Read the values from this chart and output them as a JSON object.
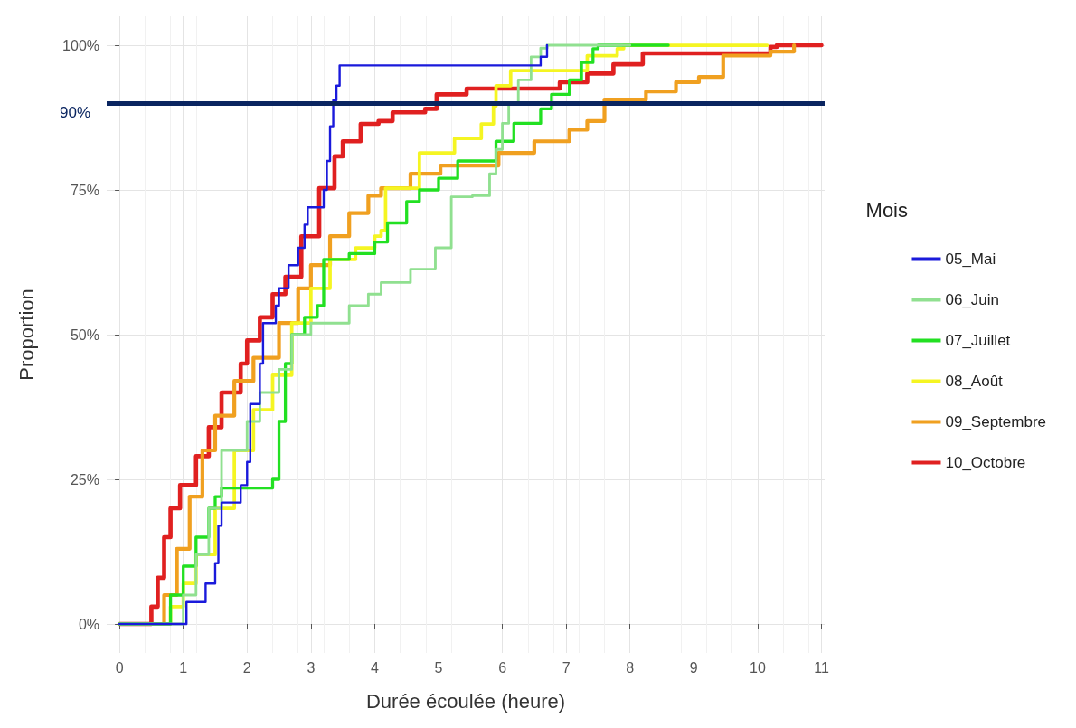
{
  "chart_data": {
    "type": "step",
    "xlabel": "Durée écoulée (heure)",
    "ylabel": "Proportion",
    "legend_title": "Mois",
    "legend": "right",
    "grid": true,
    "line_style": "solid",
    "marker": "none",
    "xlim": [
      -0.2,
      11.05
    ],
    "xticks": [
      0,
      1,
      2,
      3,
      4,
      5,
      6,
      7,
      8,
      9,
      10,
      11
    ],
    "ylim": [
      -5,
      105
    ],
    "yticks": [
      {
        "value": 0,
        "label": "0%"
      },
      {
        "value": 25,
        "label": "25%"
      },
      {
        "value": 50,
        "label": "50%"
      },
      {
        "value": 75,
        "label": "75%"
      },
      {
        "value": 100,
        "label": "100%"
      }
    ],
    "ref_lines": [
      {
        "axis": "y",
        "value": 90,
        "label": "90%",
        "color": "#0a2560",
        "line_style": "solid"
      }
    ],
    "series": [
      {
        "name": "05_Mai",
        "color": "#1a1adb",
        "x": [
          0,
          1.05,
          1.35,
          1.5,
          1.55,
          1.6,
          1.9,
          2.0,
          2.05,
          2.2,
          2.25,
          2.45,
          2.5,
          2.65,
          2.8,
          2.9,
          2.95,
          3.2,
          3.25,
          3.3,
          3.35,
          3.4,
          3.45,
          6.6,
          6.7
        ],
        "values": [
          0,
          3.8,
          7,
          10.5,
          17,
          21,
          24,
          28,
          38,
          45,
          52,
          55,
          58,
          62,
          65,
          69,
          72,
          75,
          80,
          86,
          90.5,
          93,
          96.5,
          98,
          100
        ]
      },
      {
        "name": "06_Juin",
        "color": "#90e090",
        "x": [
          0,
          0.8,
          1.0,
          1.2,
          1.4,
          1.6,
          2.0,
          2.2,
          2.5,
          2.7,
          3.0,
          3.6,
          3.9,
          4.1,
          4.56,
          4.95,
          5.2,
          5.53,
          5.8,
          5.9,
          6.0,
          6.1,
          6.25,
          6.45,
          6.6,
          6.7,
          8.0
        ],
        "values": [
          0,
          0,
          5,
          12,
          20,
          30,
          35,
          40,
          44,
          50,
          52,
          55,
          57,
          59,
          61.3,
          65,
          73.8,
          74,
          77.8,
          82,
          86.5,
          90,
          94,
          98,
          99.5,
          100,
          100
        ]
      },
      {
        "name": "07_Juillet",
        "color": "#22e022",
        "x": [
          0,
          0.65,
          0.8,
          1.0,
          1.2,
          1.4,
          1.5,
          1.6,
          2.2,
          2.4,
          2.5,
          2.6,
          2.7,
          2.9,
          3.1,
          3.2,
          3.6,
          4.0,
          4.2,
          4.5,
          4.7,
          5.0,
          5.3,
          5.9,
          6.18,
          6.6,
          6.77,
          7.05,
          7.24,
          7.42,
          7.5,
          8.6
        ],
        "values": [
          0,
          0,
          5,
          10,
          15,
          20,
          22,
          23.5,
          23.5,
          25,
          35,
          45,
          50,
          53,
          55,
          63,
          64,
          66,
          69.3,
          73,
          75,
          77,
          80,
          83.4,
          86.5,
          89,
          91.5,
          94,
          97,
          99.4,
          100,
          100
        ]
      },
      {
        "name": "08_Août",
        "color": "#f5f522",
        "x": [
          0,
          0.65,
          0.8,
          1.0,
          1.2,
          1.5,
          1.8,
          2.1,
          2.4,
          2.7,
          3.0,
          3.3,
          3.7,
          4.0,
          4.1,
          4.17,
          4.7,
          5.25,
          5.67,
          5.86,
          5.9,
          6.13,
          7.15,
          7.33,
          7.8,
          7.9,
          10.15
        ],
        "values": [
          0,
          0,
          3,
          7,
          12,
          20,
          30,
          37,
          43,
          52,
          58,
          63,
          65,
          67,
          68,
          75.3,
          81.4,
          83.9,
          86.4,
          89.5,
          93,
          95.6,
          95.6,
          98.2,
          99.4,
          100,
          100
        ]
      },
      {
        "name": "09_Septembre",
        "color": "#f0a020",
        "x": [
          0,
          0.5,
          0.7,
          0.9,
          1.1,
          1.3,
          1.5,
          1.8,
          2.1,
          2.5,
          2.8,
          3.0,
          3.3,
          3.6,
          3.9,
          4.1,
          4.56,
          5.03,
          5.94,
          6.5,
          7.05,
          7.33,
          7.6,
          8.25,
          8.72,
          9.08,
          9.46,
          10.2,
          10.57
        ],
        "values": [
          0,
          0,
          5,
          13,
          22,
          30,
          36,
          42,
          46,
          52,
          58,
          62,
          67,
          71,
          74,
          75.3,
          77.8,
          79.2,
          81.4,
          83.4,
          85.4,
          86.9,
          90.6,
          92,
          93.6,
          94.5,
          98.2,
          98.9,
          100
        ]
      },
      {
        "name": "10_Octobre",
        "color": "#e02020",
        "x": [
          0,
          0.45,
          0.5,
          0.6,
          0.7,
          0.8,
          0.95,
          1.2,
          1.4,
          1.6,
          1.9,
          2.0,
          2.2,
          2.4,
          2.6,
          2.85,
          3.13,
          3.37,
          3.5,
          3.78,
          4.06,
          4.28,
          4.79,
          4.97,
          5.44,
          6.9,
          7.33,
          7.74,
          8.2,
          10.2,
          10.3,
          11.0
        ],
        "values": [
          0,
          0,
          3,
          8,
          15,
          20,
          24,
          29,
          34,
          40,
          45,
          49,
          53,
          57,
          60,
          67,
          75.3,
          80.8,
          83.4,
          86.4,
          86.9,
          88.4,
          89,
          91.5,
          92.5,
          93.6,
          95.1,
          96.7,
          98.6,
          99.7,
          100,
          100
        ]
      }
    ]
  }
}
